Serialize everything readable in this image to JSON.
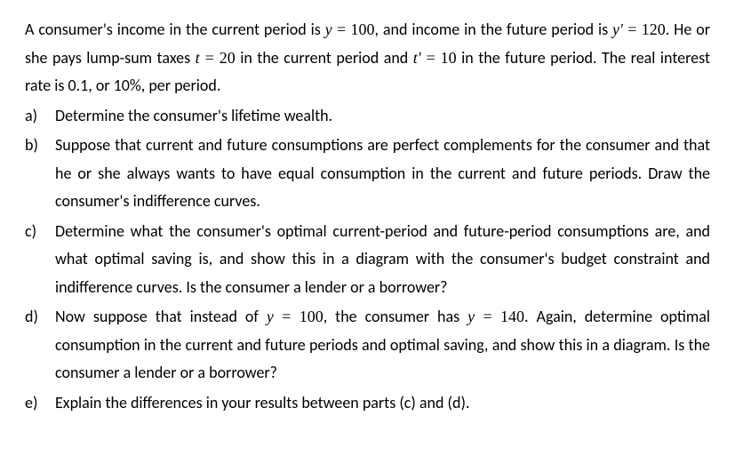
{
  "intro": {
    "line1_pre": "A consumer's income in the current period is ",
    "y_var": "y",
    "eq1": " = ",
    "y_val": "100",
    "line1_post": ", and income in the future",
    "line2_pre": "period is ",
    "yp_var": "y'",
    "eq2": " = ",
    "yp_val": "120",
    "line2_mid": ". He or she pays lump-sum taxes ",
    "t_var": "t",
    "eq3": " = ",
    "t_val": "20",
    "line2_post": " in the current period and",
    "line3_pre": "",
    "tp_var": "t'",
    "eq4": " = ",
    "tp_val": "10",
    "line3_post": " in the future period. The real interest rate is 0.1, or 10%, per period."
  },
  "items": {
    "a": {
      "label": "a)",
      "text": "Determine the consumer's lifetime wealth."
    },
    "b": {
      "label": "b)",
      "text": "Suppose that current and future consumptions are perfect complements for the consumer and that he or she always wants to have equal consumption in the current and future periods. Draw the consumer's indifference curves."
    },
    "c": {
      "label": "c)",
      "text": "Determine what the consumer's optimal current-period and future-period consumptions are, and what optimal saving is, and show this in a diagram with the consumer's budget constraint and indifference curves. Is the consumer a lender or a borrower?"
    },
    "d": {
      "label": "d)",
      "pre": "Now suppose that instead of ",
      "y_var": "y",
      "eq1": " = ",
      "y_val1": "100",
      "mid": ", the consumer has ",
      "y_var2": "y",
      "eq2": " = ",
      "y_val2": "140",
      "post": ". Again, determine optimal consumption in the current and future periods and optimal saving, and show this in a diagram. Is the consumer a lender or a borrower?"
    },
    "e": {
      "label": "e)",
      "text": "Explain the differences in your results between parts (c) and (d)."
    }
  },
  "styles": {
    "background_color": "#ffffff",
    "text_color": "#000000",
    "font_family": "Calibri, Segoe UI, sans-serif",
    "math_font_family": "Cambria Math, Times New Roman, serif",
    "font_size": 18,
    "line_height": 1.75,
    "text_align": "justify"
  }
}
